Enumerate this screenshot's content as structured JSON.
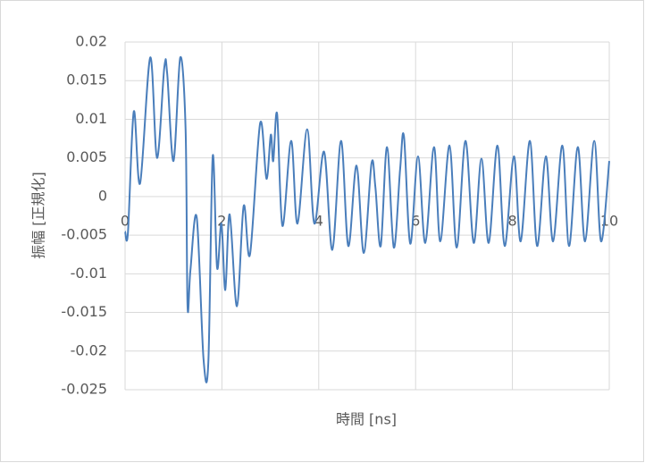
{
  "chart_data": {
    "type": "line",
    "x_label": "時間 [ns]",
    "y_label": "振幅 [正規化]",
    "xlim": [
      0,
      10
    ],
    "xticks": [
      0,
      2,
      4,
      6,
      8,
      10
    ],
    "ylim": [
      -0.025,
      0.02
    ],
    "yticks": [
      0.02,
      0.015,
      0.01,
      0.005,
      0,
      -0.005,
      -0.01,
      -0.015,
      -0.02,
      -0.025
    ],
    "grid": true,
    "series": [
      {
        "color": "#4a7ebb",
        "x": [
          0,
          0.06,
          0.18,
          0.31,
          0.52,
          0.66,
          0.81,
          0.87,
          1.0,
          1.14,
          1.25,
          1.29,
          1.35,
          1.48,
          1.62,
          1.72,
          1.81,
          1.9,
          1.99,
          2.07,
          2.16,
          2.31,
          2.45,
          2.58,
          2.79,
          2.92,
          3.01,
          3.06,
          3.14,
          3.25,
          3.43,
          3.56,
          3.76,
          3.91,
          4.11,
          4.28,
          4.46,
          4.61,
          4.78,
          4.93,
          5.09,
          5.17,
          5.28,
          5.41,
          5.55,
          5.68,
          5.76,
          5.89,
          6.05,
          6.2,
          6.38,
          6.51,
          6.7,
          6.85,
          7.03,
          7.2,
          7.36,
          7.51,
          7.69,
          7.84,
          8.03,
          8.17,
          8.36,
          8.51,
          8.69,
          8.84,
          9.03,
          9.17,
          9.35,
          9.5,
          9.69,
          9.83,
          10
        ],
        "values": [
          -0.0045,
          -0.0046,
          0.011,
          0.0017,
          0.018,
          0.005,
          0.0167,
          0.0159,
          0.0046,
          0.018,
          0.0087,
          -0.0141,
          -0.0095,
          -0.0027,
          -0.021,
          -0.0214,
          0.0052,
          -0.0092,
          -0.0035,
          -0.0121,
          -0.0023,
          -0.0142,
          -0.0012,
          -0.0075,
          0.0095,
          0.0023,
          0.008,
          0.0046,
          0.0107,
          -0.0038,
          0.0072,
          -0.0035,
          0.0087,
          -0.0035,
          0.0058,
          -0.0069,
          0.0072,
          -0.0064,
          0.004,
          -0.0073,
          0.0043,
          0.0012,
          -0.0064,
          0.0064,
          -0.0066,
          0.0035,
          0.0078,
          -0.0061,
          0.0052,
          -0.006,
          0.0064,
          -0.0058,
          0.0066,
          -0.0066,
          0.0072,
          -0.006,
          0.0049,
          -0.006,
          0.0066,
          -0.0064,
          0.0052,
          -0.0058,
          0.0072,
          -0.0064,
          0.0052,
          -0.0058,
          0.0066,
          -0.0064,
          0.0064,
          -0.0058,
          0.0072,
          -0.0058,
          0.0046
        ]
      }
    ]
  }
}
